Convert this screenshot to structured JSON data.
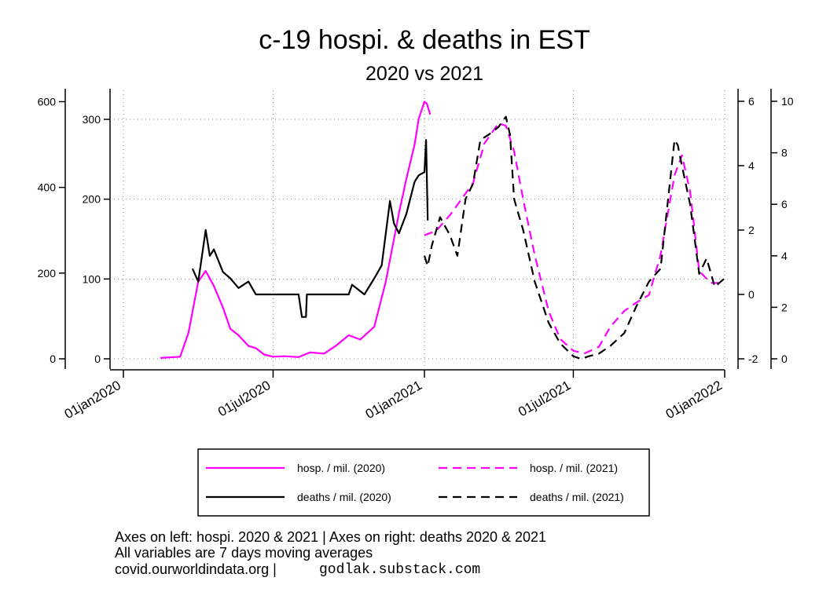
{
  "chart_data": {
    "type": "line",
    "title": "c-19 hospi. & deaths in EST",
    "subtitle": "2020 vs 2021",
    "x_ticks": [
      "01jan2020",
      "01jul2020",
      "01jan2021",
      "01jul2021",
      "01jan2022"
    ],
    "y_axes": {
      "hosp_2020": {
        "ticks": [
          0,
          200,
          400,
          600
        ],
        "range": [
          0,
          610
        ]
      },
      "hosp_2021": {
        "ticks": [
          0,
          100,
          200,
          300
        ],
        "range": [
          0,
          300
        ]
      },
      "deaths_2020": {
        "ticks": [
          -2,
          0,
          2,
          4,
          6
        ],
        "range": [
          -2,
          6
        ]
      },
      "deaths_2021": {
        "ticks": [
          0,
          2,
          4,
          6,
          8,
          10
        ],
        "range": [
          0,
          10
        ]
      }
    },
    "grid": true,
    "legend_position": "bottom",
    "series": [
      {
        "name": "hosp. / mil. (2020)",
        "color": "#ff00ff",
        "style": "solid",
        "axis": "hosp_2020",
        "x": [
          "2020-02-15",
          "2020-03-10",
          "2020-03-20",
          "2020-04-01",
          "2020-04-10",
          "2020-04-20",
          "2020-05-01",
          "2020-05-10",
          "2020-05-20",
          "2020-06-01",
          "2020-06-10",
          "2020-06-20",
          "2020-07-01",
          "2020-07-15",
          "2020-08-01",
          "2020-08-15",
          "2020-09-01",
          "2020-09-15",
          "2020-10-01",
          "2020-10-15",
          "2020-11-01",
          "2020-11-15",
          "2020-12-01",
          "2020-12-10",
          "2020-12-20",
          "2020-12-25",
          "2021-01-01",
          "2021-01-04",
          "2021-01-08"
        ],
        "y": [
          2,
          5,
          60,
          180,
          205,
          170,
          120,
          70,
          55,
          30,
          25,
          10,
          5,
          6,
          4,
          15,
          12,
          30,
          55,
          45,
          75,
          180,
          340,
          420,
          500,
          560,
          600,
          595,
          570
        ]
      },
      {
        "name": "hosp. / mil. (2021)",
        "color": "#ff00ff",
        "style": "dashed",
        "axis": "hosp_2021",
        "x": [
          "2021-01-01",
          "2021-01-15",
          "2021-02-01",
          "2021-02-15",
          "2021-03-01",
          "2021-03-15",
          "2021-04-01",
          "2021-04-10",
          "2021-04-20",
          "2021-05-01",
          "2021-05-15",
          "2021-06-01",
          "2021-06-15",
          "2021-07-01",
          "2021-07-15",
          "2021-08-01",
          "2021-08-15",
          "2021-09-01",
          "2021-09-15",
          "2021-10-01",
          "2021-10-15",
          "2021-11-01",
          "2021-11-10",
          "2021-11-20",
          "2021-12-01",
          "2021-12-15",
          "2021-12-31"
        ],
        "y": [
          155,
          160,
          180,
          200,
          220,
          270,
          295,
          292,
          260,
          200,
          130,
          60,
          25,
          10,
          7,
          15,
          40,
          60,
          70,
          80,
          130,
          230,
          255,
          210,
          110,
          95,
          95
        ]
      },
      {
        "name": "deaths / mil. (2020)",
        "color": "#000000",
        "style": "solid",
        "axis": "deaths_2020",
        "x": [
          "2020-03-25",
          "2020-04-01",
          "2020-04-05",
          "2020-04-10",
          "2020-04-15",
          "2020-04-20",
          "2020-05-01",
          "2020-05-10",
          "2020-05-20",
          "2020-06-01",
          "2020-06-10",
          "2020-07-01",
          "2020-08-01",
          "2020-08-05",
          "2020-08-06",
          "2020-08-10",
          "2020-08-11",
          "2020-09-01",
          "2020-10-01",
          "2020-10-05",
          "2020-10-10",
          "2020-10-20",
          "2020-11-01",
          "2020-11-10",
          "2020-11-20",
          "2020-11-25",
          "2020-12-01",
          "2020-12-10",
          "2020-12-20",
          "2020-12-25",
          "2021-01-01",
          "2021-01-03",
          "2021-01-05"
        ],
        "y": [
          0.8,
          0.4,
          1.1,
          2.0,
          1.2,
          1.4,
          0.7,
          0.5,
          0.2,
          0.4,
          0.0,
          0.0,
          0.0,
          -0.7,
          -0.7,
          -0.7,
          0.0,
          0.0,
          0.0,
          0.3,
          0.2,
          0.0,
          0.5,
          0.9,
          2.9,
          2.2,
          1.9,
          2.5,
          3.5,
          3.7,
          3.8,
          4.8,
          2.3
        ]
      },
      {
        "name": "deaths / mil. (2021)",
        "color": "#000000",
        "style": "dashed",
        "axis": "deaths_2021",
        "x": [
          "2021-01-01",
          "2021-01-05",
          "2021-01-10",
          "2021-01-20",
          "2021-02-01",
          "2021-02-10",
          "2021-02-20",
          "2021-03-01",
          "2021-03-10",
          "2021-03-20",
          "2021-04-01",
          "2021-04-10",
          "2021-04-15",
          "2021-04-20",
          "2021-05-01",
          "2021-05-15",
          "2021-06-01",
          "2021-06-15",
          "2021-07-01",
          "2021-07-10",
          "2021-07-20",
          "2021-08-01",
          "2021-08-15",
          "2021-09-01",
          "2021-09-15",
          "2021-10-01",
          "2021-10-15",
          "2021-11-01",
          "2021-11-05",
          "2021-11-10",
          "2021-11-20",
          "2021-12-01",
          "2021-12-10",
          "2021-12-20",
          "2021-12-31"
        ],
        "y": [
          4.0,
          3.6,
          4.4,
          5.5,
          4.8,
          4.0,
          6.2,
          6.8,
          8.5,
          8.7,
          9.0,
          9.4,
          8.7,
          6.2,
          5.0,
          3.0,
          1.4,
          0.6,
          0.1,
          0.0,
          0.1,
          0.2,
          0.5,
          1.0,
          2.0,
          3.0,
          3.5,
          8.5,
          8.3,
          7.5,
          6.0,
          3.3,
          3.9,
          2.8,
          3.1
        ]
      }
    ]
  },
  "legend": {
    "items": [
      {
        "label": "hosp. / mil. (2020)",
        "color": "#ff00ff",
        "style": "solid"
      },
      {
        "label": "hosp. / mil. (2021)",
        "color": "#ff00ff",
        "style": "dashed"
      },
      {
        "label": "deaths / mil. (2020)",
        "color": "#000000",
        "style": "solid"
      },
      {
        "label": "deaths / mil. (2021)",
        "color": "#000000",
        "style": "dashed"
      }
    ]
  },
  "notes": {
    "line1": "Axes on left: hospi. 2020 & 2021 | Axes on right: deaths 2020 & 2021",
    "line2": "All variables are 7 days moving averages",
    "line3_source": "covid.ourworldindata.org |",
    "line3_site": "godlak.substack.com"
  }
}
